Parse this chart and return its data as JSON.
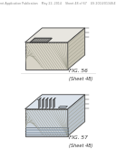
{
  "bg_color": "#ffffff",
  "header_text": "Patent Application Publication    May 22, 2014    Sheet 48 of 67    US 2014/0134649 A1",
  "header_fontsize": 2.3,
  "fig1_label": "FIG. 56",
  "fig1_sublabel": "(Sheet 48)",
  "fig2_label": "FIG. 57",
  "fig2_sublabel": "(Sheet 48)",
  "label_fontsize": 4.2,
  "sublabel_fontsize": 3.6,
  "top_face_color": "#e8e6e0",
  "front_face_color": "#d8d4c8",
  "right_face_color": "#c8c4b4",
  "hatch_color": "#999988",
  "line_color": "#444444",
  "grid_color": "#666655",
  "divider_color": "#dddddd",
  "box2_top_color": "#dde4ec",
  "box2_front_color": "#ccd4dc",
  "box2_right_color": "#bbc4cc",
  "stripe_color": "#8899aa"
}
